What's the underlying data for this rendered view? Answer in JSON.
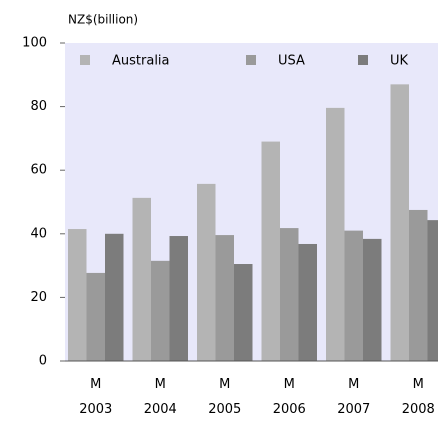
{
  "chart_data": {
    "type": "bar",
    "title": "NZ$(billion)",
    "categories": [
      "M\n2003",
      "M\n2004",
      "M\n2005",
      "M\n2006",
      "M\n2007",
      "M\n2008"
    ],
    "series": [
      {
        "name": "Australia",
        "color": "#b4b4b4",
        "values": [
          41.5,
          51.3,
          55.7,
          69,
          79.6,
          87
        ]
      },
      {
        "name": "USA",
        "color": "#9a9a9a",
        "values": [
          27.7,
          31.5,
          39.6,
          41.8,
          41,
          47.5
        ]
      },
      {
        "name": "UK",
        "color": "#7c7c7c",
        "values": [
          40,
          39.3,
          30.5,
          36.8,
          38.4,
          44.3
        ]
      }
    ],
    "ylim": [
      0,
      100
    ],
    "yticks": [
      0,
      20,
      40,
      60,
      80,
      100
    ],
    "legend": "top"
  }
}
